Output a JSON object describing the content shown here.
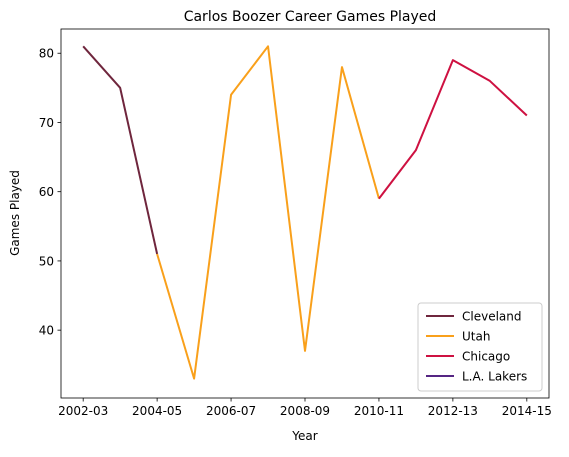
{
  "chart_data": {
    "type": "line",
    "title": "Carlos Boozer Career Games Played",
    "xlabel": "Year",
    "ylabel": "Games Played",
    "x_ticks": [
      "2002-03",
      "2004-05",
      "2006-07",
      "2008-09",
      "2010-11",
      "2012-13",
      "2014-15"
    ],
    "x": [
      "2002-03",
      "2003-04",
      "2004-05",
      "2005-06",
      "2006-07",
      "2007-08",
      "2008-09",
      "2009-10",
      "2010-11",
      "2011-12",
      "2012-13",
      "2013-14",
      "2014-15"
    ],
    "y_ticks": [
      40,
      50,
      60,
      70,
      80
    ],
    "ylim": [
      30.2,
      83.5
    ],
    "grid": false,
    "legend_position": "lower right",
    "series": [
      {
        "name": "Cleveland",
        "color": "#6f263d",
        "points": [
          [
            "2002-03",
            81
          ],
          [
            "2003-04",
            75
          ],
          [
            "2004-05",
            51
          ]
        ]
      },
      {
        "name": "Utah",
        "color": "#f9a01b",
        "points": [
          [
            "2004-05",
            51
          ],
          [
            "2005-06",
            33
          ],
          [
            "2006-07",
            74
          ],
          [
            "2007-08",
            81
          ],
          [
            "2008-09",
            37
          ],
          [
            "2009-10",
            78
          ],
          [
            "2010-11",
            59
          ]
        ]
      },
      {
        "name": "Chicago",
        "color": "#ce1141",
        "points": [
          [
            "2010-11",
            59
          ],
          [
            "2011-12",
            66
          ],
          [
            "2012-13",
            79
          ],
          [
            "2013-14",
            76
          ],
          [
            "2014-15",
            71
          ]
        ]
      },
      {
        "name": "L.A. Lakers",
        "color": "#552583",
        "points": []
      }
    ]
  }
}
